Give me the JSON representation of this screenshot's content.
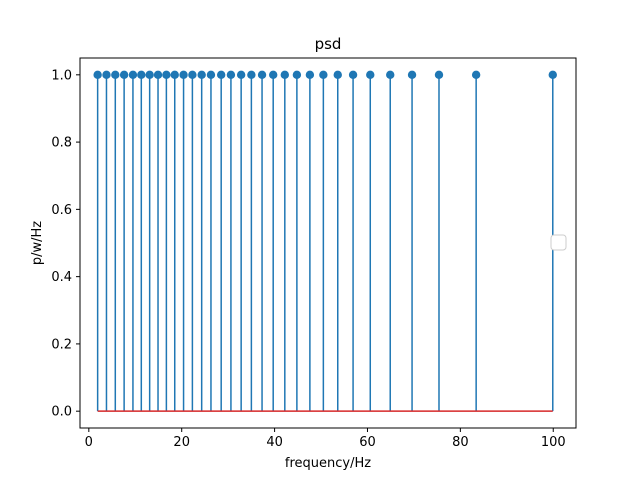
{
  "chart_data": {
    "type": "stem",
    "title": "psd",
    "xlabel": "frequency/Hz",
    "ylabel": "p/w/Hz",
    "xlim": [
      -1.9,
      104.9
    ],
    "ylim": [
      -0.05,
      1.05
    ],
    "xticks": [
      0,
      20,
      40,
      60,
      80,
      100
    ],
    "yticks": [
      0.0,
      0.2,
      0.4,
      0.6,
      0.8,
      1.0
    ],
    "ytick_labels": [
      "0.0",
      "0.2",
      "0.4",
      "0.6",
      "0.8",
      "1.0"
    ],
    "x": [
      1.9,
      3.8,
      5.7,
      7.6,
      9.5,
      11.3,
      13.1,
      14.9,
      16.7,
      18.5,
      20.4,
      22.3,
      24.3,
      26.3,
      28.5,
      30.6,
      32.8,
      35.0,
      37.3,
      39.7,
      42.2,
      44.8,
      47.6,
      50.5,
      53.6,
      56.9,
      60.6,
      64.9,
      69.6,
      75.4,
      83.4,
      99.9
    ],
    "values": [
      1,
      1,
      1,
      1,
      1,
      1,
      1,
      1,
      1,
      1,
      1,
      1,
      1,
      1,
      1,
      1,
      1,
      1,
      1,
      1,
      1,
      1,
      1,
      1,
      1,
      1,
      1,
      1,
      1,
      1,
      1,
      1
    ],
    "baseline": 0,
    "grid": false,
    "legend": {
      "placement": "center-right",
      "entries": []
    },
    "colors": {
      "stem": "#1f77b4",
      "marker": "#1f77b4",
      "baseline": "#d62728"
    }
  }
}
